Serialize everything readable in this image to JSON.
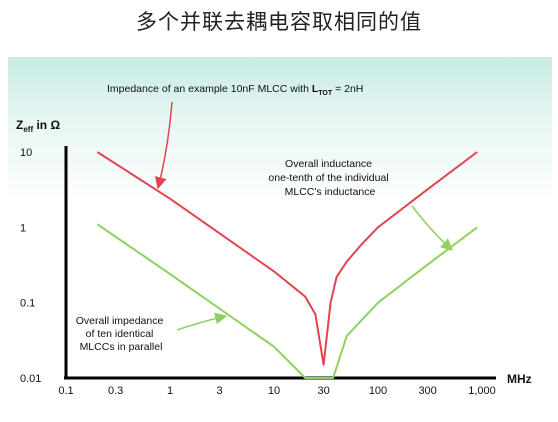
{
  "title": "多个并联去耦电容取相同的值",
  "chart_data": {
    "type": "line",
    "xscale": "log",
    "yscale": "log",
    "xlim": [
      0.1,
      1000
    ],
    "ylim": [
      0.01,
      10
    ],
    "xticks": [
      "0.1",
      "0.3",
      "1",
      "3",
      "10",
      "30",
      "100",
      "300",
      "1,000"
    ],
    "xtick_values": [
      0.1,
      0.3,
      1,
      3,
      10,
      30,
      100,
      300,
      1000
    ],
    "yticks": [
      "0.01",
      "0.1",
      "1",
      "10"
    ],
    "ytick_values": [
      0.01,
      0.1,
      1,
      10
    ],
    "xlabel": "MHz",
    "ylabel_main": "Z",
    "ylabel_sub": "eff",
    "ylabel_tail": " in Ω",
    "series": [
      {
        "color": "#e0454f",
        "x": [
          0.2,
          1,
          10,
          20,
          25,
          30,
          35,
          40,
          50,
          70,
          100,
          300,
          900
        ],
        "y": [
          10,
          2.4,
          0.26,
          0.12,
          0.07,
          0.015,
          0.1,
          0.22,
          0.35,
          0.6,
          1.0,
          3.2,
          10
        ]
      },
      {
        "color": "#8fd160",
        "x": [
          0.2,
          1,
          10,
          20,
          37,
          50,
          100,
          300,
          900
        ],
        "y": [
          1.1,
          0.24,
          0.026,
          0.01,
          0.01,
          0.036,
          0.1,
          0.32,
          1.0
        ]
      }
    ],
    "annotations": {
      "red_label_prefix": "Impedance of an example 10nF MLCC with ",
      "red_label_sym": "L",
      "red_label_sub": "TOT",
      "red_label_suffix": " = 2nH",
      "inductance_lines": [
        "Overall inductance",
        "one-tenth of the individual",
        "MLCC's inductance"
      ],
      "impedance_lines": [
        "Overall impedance",
        "of ten identical",
        "MLCCs in parallel"
      ]
    }
  }
}
